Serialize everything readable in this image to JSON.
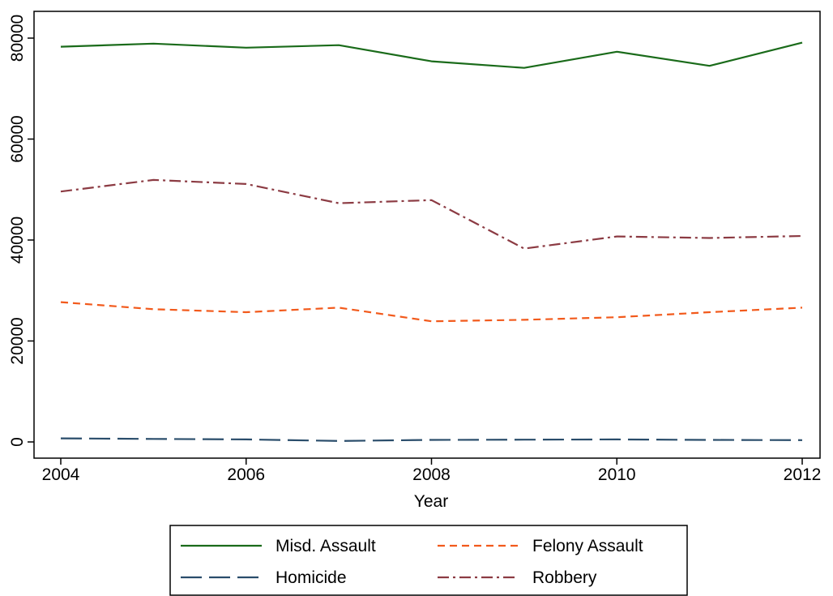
{
  "chart_data": {
    "type": "line",
    "title": "",
    "xlabel": "Year",
    "ylabel": "",
    "x": [
      2004,
      2005,
      2006,
      2007,
      2008,
      2009,
      2010,
      2011,
      2012
    ],
    "xlim": [
      2004,
      2012
    ],
    "ylim": [
      0,
      80000
    ],
    "xticks": [
      "2004",
      "2006",
      "2008",
      "2010",
      "2012"
    ],
    "yticks": [
      "0",
      "20000",
      "40000",
      "60000",
      "80000"
    ],
    "grid": false,
    "legend_position": "bottom",
    "series": [
      {
        "name": "Misd. Assault",
        "color": "#1a6b1a",
        "dash": "solid",
        "values": [
          78300,
          78900,
          78100,
          78600,
          75400,
          74100,
          77300,
          74500,
          79100
        ]
      },
      {
        "name": "Felony Assault",
        "color": "#f25a1c",
        "dash": "dashed",
        "values": [
          27700,
          26300,
          25700,
          26600,
          23900,
          24200,
          24700,
          25700,
          26600
        ]
      },
      {
        "name": "Homicide",
        "color": "#2a4d6b",
        "dash": "longdash",
        "values": [
          700,
          600,
          500,
          200,
          400,
          450,
          500,
          400,
          350
        ]
      },
      {
        "name": "Robbery",
        "color": "#8c3b43",
        "dash": "dashdot",
        "values": [
          49600,
          51900,
          51100,
          47300,
          47900,
          38300,
          40700,
          40400,
          40800
        ]
      }
    ]
  }
}
